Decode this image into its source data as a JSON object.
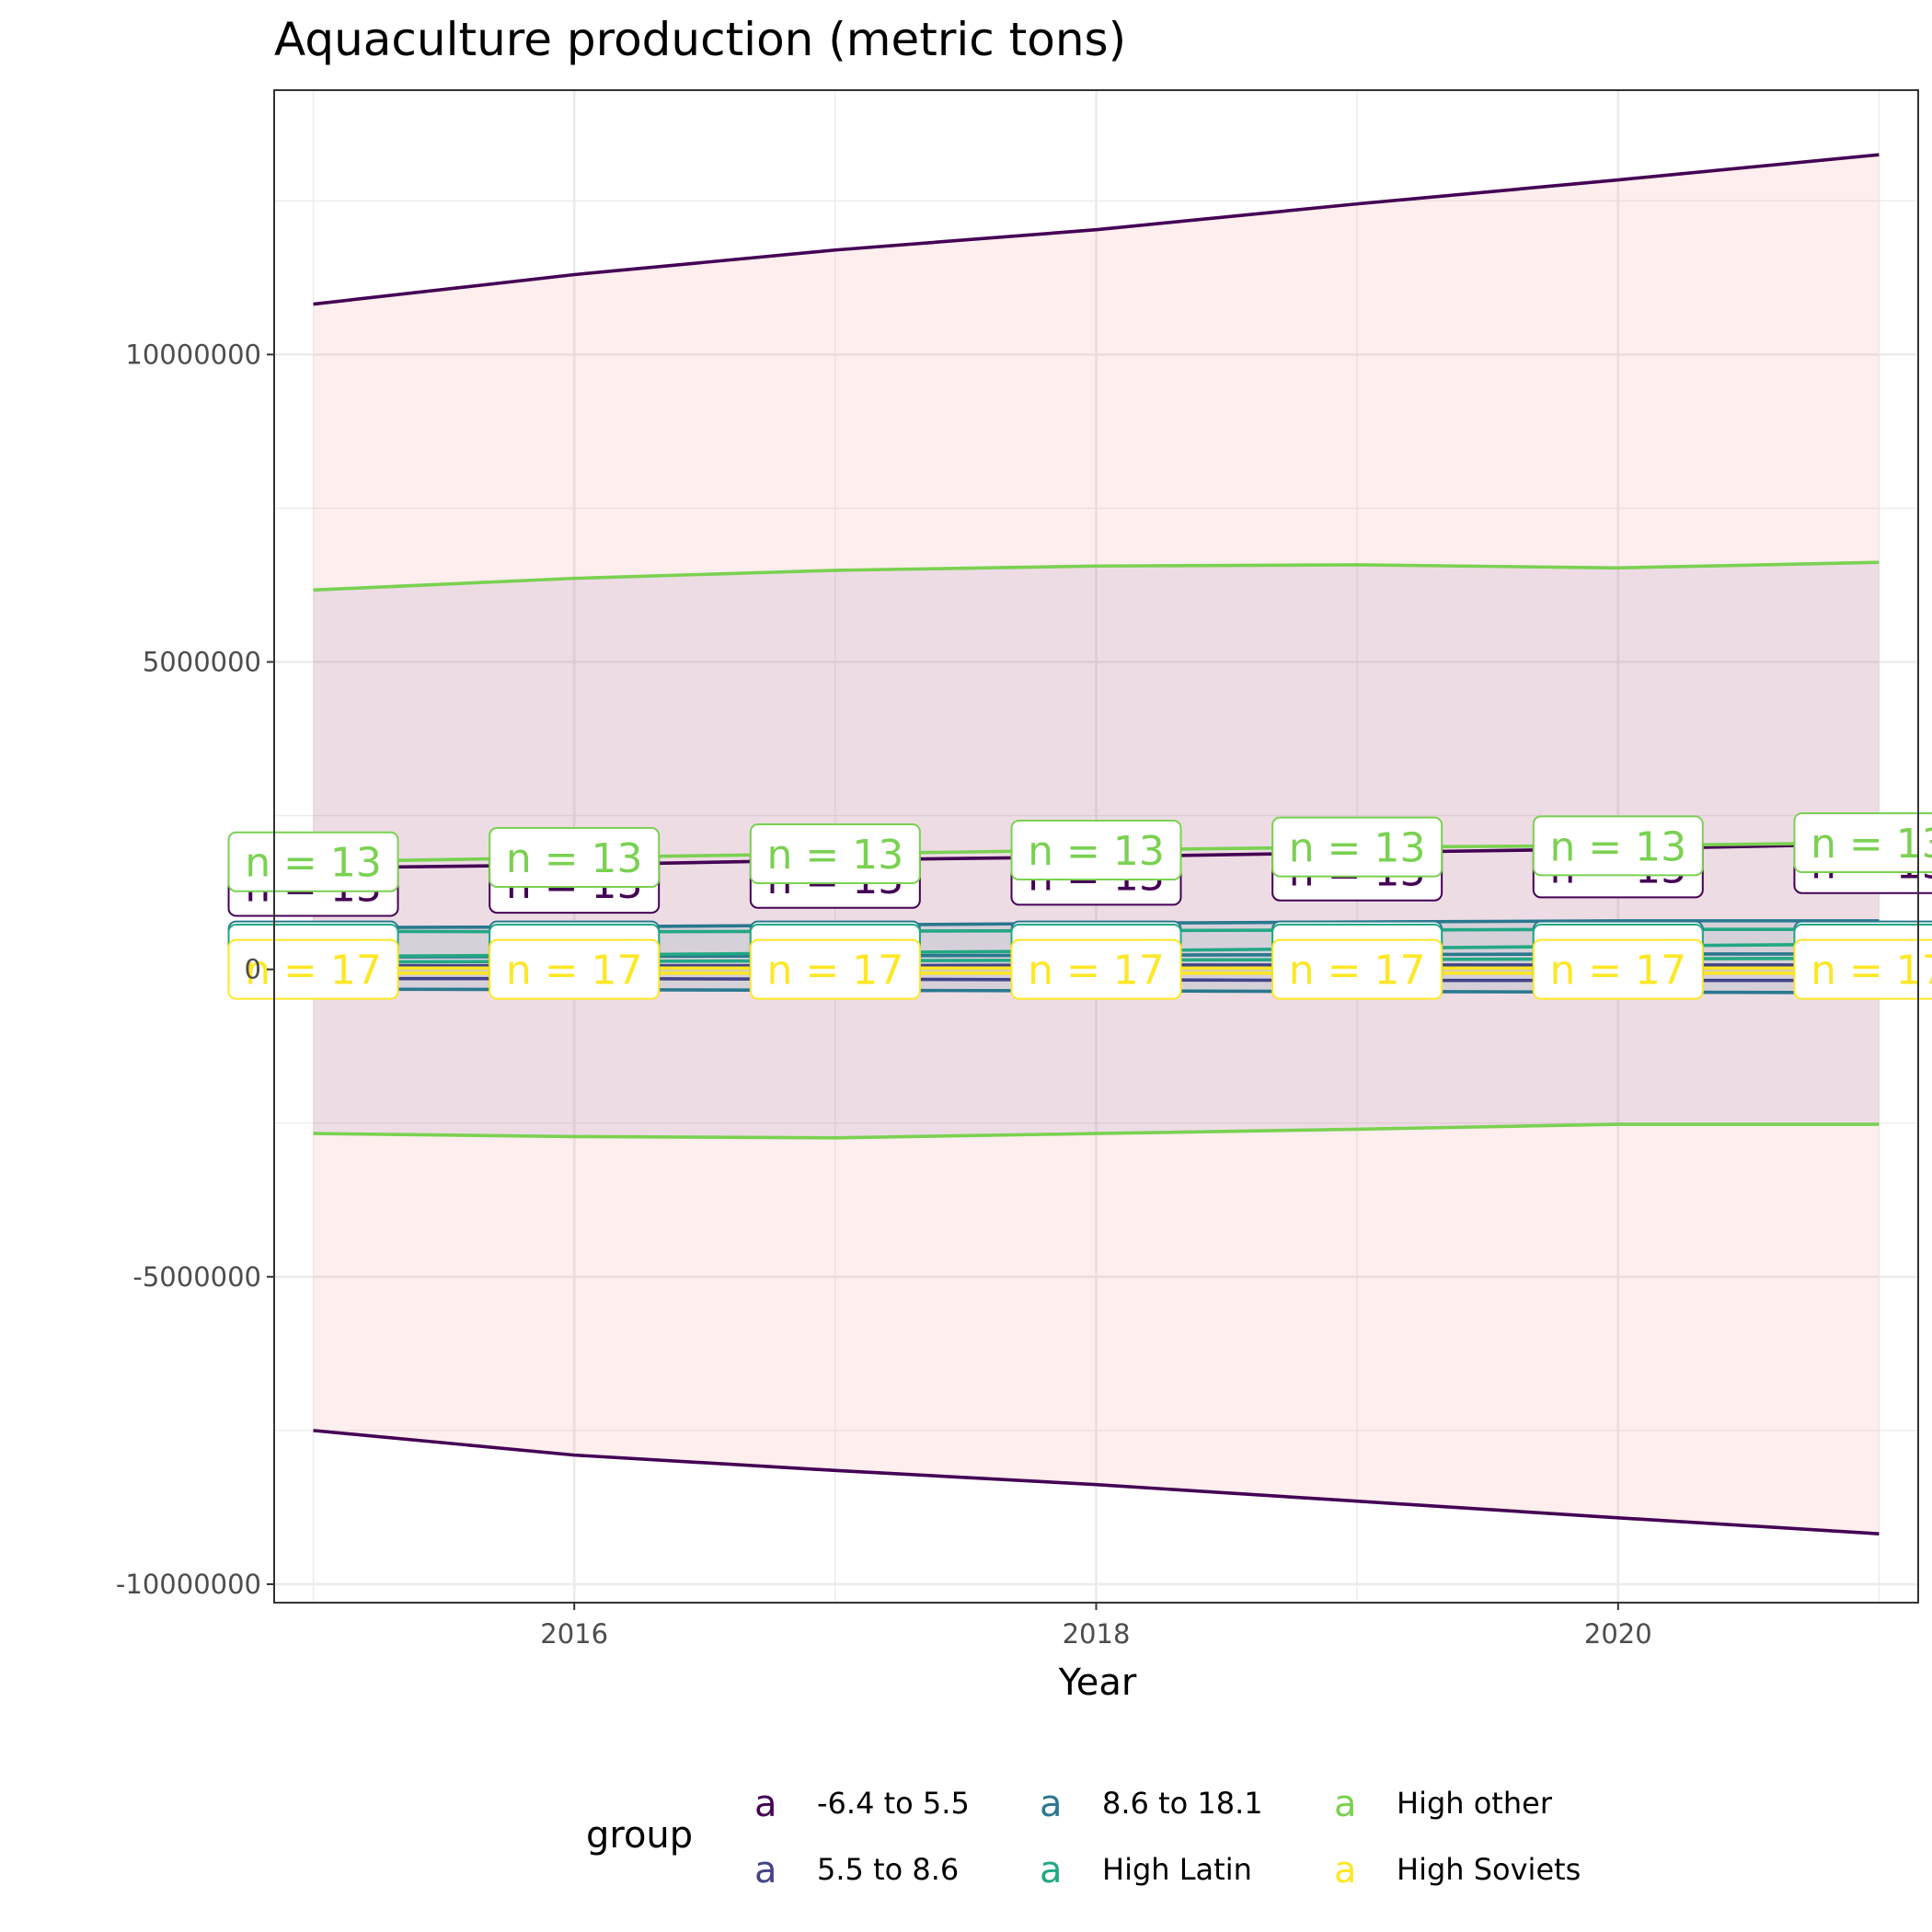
{
  "chart_data": {
    "type": "line",
    "title": "Aquaculture production (metric tons)",
    "xlabel": "Year",
    "ylabel": "",
    "xlim": [
      2014.85,
      2021.15
    ],
    "ylim": [
      -10300000,
      14300000
    ],
    "x_ticks": [
      2016,
      2018,
      2020
    ],
    "y_ticks": [
      10000000,
      5000000,
      0,
      -5000000,
      -10000000
    ],
    "y_tick_labels": [
      "10000000",
      "5000000",
      "0",
      "-5000000",
      "-10000000"
    ],
    "x_tick_labels": [
      "2016",
      "2018",
      "2020"
    ],
    "grid": true,
    "legend_position": "bottom",
    "legend": {
      "title": "group",
      "items": [
        {
          "name": "-6.4 to 5.5",
          "color": "#440154"
        },
        {
          "name": "5.5 to 8.6",
          "color": "#414487"
        },
        {
          "name": "8.6 to 18.1",
          "color": "#2A788E"
        },
        {
          "name": "High Latin",
          "color": "#22A884"
        },
        {
          "name": "High other",
          "color": "#7AD151"
        },
        {
          "name": "High Soviets",
          "color": "#FDE725"
        }
      ],
      "key_glyph": "a"
    },
    "x": [
      2015,
      2016,
      2017,
      2018,
      2019,
      2020,
      2021
    ],
    "ribbons": [
      {
        "group": "-6.4 to 5.5",
        "fill": "#F8766D",
        "lower": [
          -7500000,
          -7900000,
          -8150000,
          -8380000,
          -8650000,
          -8920000,
          -9180000
        ],
        "upper": [
          10820000,
          11300000,
          11700000,
          12030000,
          12450000,
          12840000,
          13250000
        ]
      },
      {
        "group": "High other",
        "fill": "#7B5EA7",
        "lower": [
          -2670000,
          -2720000,
          -2740000,
          -2670000,
          -2600000,
          -2520000,
          -2520000
        ],
        "upper": [
          6170000,
          6360000,
          6490000,
          6560000,
          6580000,
          6530000,
          6620000
        ]
      },
      {
        "group": "8.6 to 18.1",
        "fill": "#2A788E",
        "lower": [
          -320000,
          -330000,
          -340000,
          -350000,
          -360000,
          -370000,
          -380000
        ],
        "upper": [
          680000,
          690000,
          720000,
          750000,
          770000,
          790000,
          790000
        ]
      }
    ],
    "series": [
      {
        "name": "-6.4 to 5.5",
        "color": "#440154",
        "role": "mean",
        "values": [
          1650000,
          1700000,
          1780000,
          1830000,
          1900000,
          1960000,
          2040000
        ]
      },
      {
        "name": "-6.4 to 5.5",
        "color": "#440154",
        "role": "bound",
        "values": [
          -7500000,
          -7900000,
          -8150000,
          -8380000,
          -8650000,
          -8920000,
          -9180000
        ]
      },
      {
        "name": "-6.4 to 5.5",
        "color": "#440154",
        "role": "bound",
        "values": [
          10820000,
          11300000,
          11700000,
          12030000,
          12450000,
          12840000,
          13250000
        ]
      },
      {
        "name": "High other",
        "color": "#7AD151",
        "role": "mean",
        "values": [
          1750000,
          1820000,
          1880000,
          1940000,
          1990000,
          2010000,
          2060000
        ]
      },
      {
        "name": "High other",
        "color": "#7AD151",
        "role": "bound",
        "values": [
          -2670000,
          -2720000,
          -2740000,
          -2670000,
          -2600000,
          -2520000,
          -2520000
        ]
      },
      {
        "name": "High other",
        "color": "#7AD151",
        "role": "bound",
        "values": [
          6170000,
          6360000,
          6490000,
          6560000,
          6580000,
          6530000,
          6620000
        ]
      },
      {
        "name": "8.6 to 18.1",
        "color": "#2A788E",
        "role": "bound",
        "values": [
          680000,
          690000,
          720000,
          750000,
          770000,
          790000,
          790000
        ]
      },
      {
        "name": "8.6 to 18.1",
        "color": "#2A788E",
        "role": "bound",
        "values": [
          -320000,
          -330000,
          -340000,
          -350000,
          -360000,
          -370000,
          -380000
        ]
      },
      {
        "name": "8.6 to 18.1",
        "color": "#2A788E",
        "role": "mean",
        "values": [
          200000,
          210000,
          220000,
          230000,
          240000,
          250000,
          250000
        ]
      },
      {
        "name": "High Latin",
        "color": "#22A884",
        "role": "bound",
        "values": [
          620000,
          610000,
          620000,
          630000,
          640000,
          650000,
          650000
        ]
      },
      {
        "name": "High Latin",
        "color": "#22A884",
        "role": "bound",
        "values": [
          210000,
          230000,
          270000,
          300000,
          340000,
          380000,
          410000
        ]
      },
      {
        "name": "High Latin",
        "color": "#22A884",
        "role": "mean",
        "values": [
          120000,
          130000,
          140000,
          150000,
          160000,
          170000,
          180000
        ]
      },
      {
        "name": "5.5 to 8.6",
        "color": "#414487",
        "role": "mean",
        "values": [
          60000,
          60000,
          60000,
          70000,
          70000,
          70000,
          70000
        ]
      },
      {
        "name": "5.5 to 8.6",
        "color": "#414487",
        "role": "bound",
        "values": [
          -150000,
          -150000,
          -160000,
          -170000,
          -180000,
          -180000,
          -180000
        ]
      },
      {
        "name": "High Soviets",
        "color": "#FDE725",
        "role": "mean",
        "values": [
          20000,
          20000,
          20000,
          20000,
          20000,
          20000,
          20000
        ]
      },
      {
        "name": "High Soviets",
        "color": "#FDE725",
        "role": "bound",
        "values": [
          -60000,
          -60000,
          -60000,
          -60000,
          -60000,
          -60000,
          -60000
        ]
      }
    ],
    "annotations": [
      {
        "text": "n = 13",
        "color": "#440154",
        "values": [
          1350000,
          1400000,
          1480000,
          1530000,
          1600000,
          1650000,
          1720000
        ]
      },
      {
        "text": "n = 13",
        "color": "#7AD151",
        "values": [
          1750000,
          1820000,
          1880000,
          1940000,
          1990000,
          2010000,
          2060000
        ]
      },
      {
        "text": "n = 17",
        "color": "#2A788E",
        "values": [
          300000,
          300000,
          300000,
          300000,
          300000,
          300000,
          300000
        ]
      },
      {
        "text": "n = 17",
        "color": "#22A884",
        "values": [
          250000,
          250000,
          250000,
          250000,
          250000,
          250000,
          250000
        ]
      },
      {
        "text": "n = 17",
        "color": "#FDE725",
        "values": [
          0,
          0,
          0,
          0,
          0,
          0,
          0
        ]
      }
    ]
  }
}
